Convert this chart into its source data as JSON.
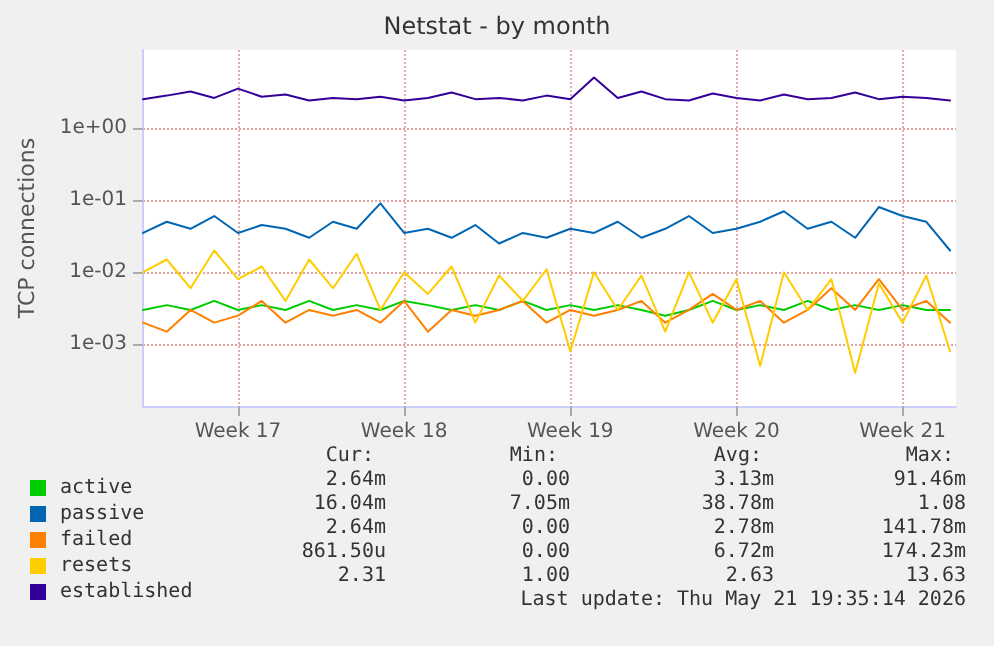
{
  "chart_data": {
    "type": "line",
    "title": "Netstat - by month",
    "ylabel": "TCP connections",
    "x": [
      "2026-04-19T12:00",
      "2026-04-20T12:00",
      "2026-04-21T12:00",
      "2026-04-22T12:00",
      "2026-04-23T12:00",
      "2026-04-24T12:00",
      "2026-04-25T12:00",
      "2026-04-26T12:00",
      "2026-04-27T12:00",
      "2026-04-28T12:00",
      "2026-04-29T12:00",
      "2026-04-30T12:00",
      "2026-05-01T12:00",
      "2026-05-02T12:00",
      "2026-05-03T12:00",
      "2026-05-04T12:00",
      "2026-05-05T12:00",
      "2026-05-06T12:00",
      "2026-05-07T12:00",
      "2026-05-08T12:00",
      "2026-05-09T12:00",
      "2026-05-10T12:00",
      "2026-05-11T12:00",
      "2026-05-12T12:00",
      "2026-05-13T12:00",
      "2026-05-14T12:00",
      "2026-05-15T12:00",
      "2026-05-16T12:00",
      "2026-05-17T12:00",
      "2026-05-18T12:00",
      "2026-05-19T12:00",
      "2026-05-20T12:00",
      "2026-05-21T12:00",
      "2026-05-22T12:00",
      "2026-05-23T12:00"
    ],
    "series": [
      {
        "name": "active",
        "color": "#00cc00",
        "values": [
          0.003,
          0.0035,
          0.003,
          0.004,
          0.003,
          0.0035,
          0.003,
          0.004,
          0.003,
          0.0035,
          0.003,
          0.004,
          0.0035,
          0.003,
          0.0035,
          0.003,
          0.004,
          0.003,
          0.0035,
          0.003,
          0.0035,
          0.003,
          0.0025,
          0.003,
          0.004,
          0.003,
          0.0035,
          0.003,
          0.004,
          0.003,
          0.0035,
          0.003,
          0.0035,
          0.003,
          0.003
        ]
      },
      {
        "name": "passive",
        "color": "#0066b3",
        "values": [
          0.035,
          0.05,
          0.04,
          0.06,
          0.035,
          0.045,
          0.04,
          0.03,
          0.05,
          0.04,
          0.09,
          0.035,
          0.04,
          0.03,
          0.045,
          0.025,
          0.035,
          0.03,
          0.04,
          0.035,
          0.05,
          0.03,
          0.04,
          0.06,
          0.035,
          0.04,
          0.05,
          0.07,
          0.04,
          0.05,
          0.03,
          0.08,
          0.06,
          0.05,
          0.02
        ]
      },
      {
        "name": "failed",
        "color": "#ff8000",
        "values": [
          0.002,
          0.0015,
          0.003,
          0.002,
          0.0025,
          0.004,
          0.002,
          0.003,
          0.0025,
          0.003,
          0.002,
          0.004,
          0.0015,
          0.003,
          0.0025,
          0.003,
          0.004,
          0.002,
          0.003,
          0.0025,
          0.003,
          0.004,
          0.002,
          0.003,
          0.005,
          0.003,
          0.004,
          0.002,
          0.003,
          0.006,
          0.003,
          0.008,
          0.003,
          0.004,
          0.002
        ]
      },
      {
        "name": "resets",
        "color": "#ffcc00",
        "values": [
          0.01,
          0.015,
          0.006,
          0.02,
          0.008,
          0.012,
          0.004,
          0.015,
          0.006,
          0.018,
          0.003,
          0.01,
          0.005,
          0.012,
          0.002,
          0.009,
          0.004,
          0.011,
          0.0008,
          0.01,
          0.003,
          0.009,
          0.0015,
          0.01,
          0.002,
          0.008,
          0.0005,
          0.01,
          0.003,
          0.008,
          0.0004,
          0.007,
          0.002,
          0.009,
          0.0008
        ]
      },
      {
        "name": "established",
        "color": "#330099",
        "values": [
          2.5,
          2.8,
          3.2,
          2.6,
          3.5,
          2.7,
          2.9,
          2.4,
          2.6,
          2.5,
          2.7,
          2.4,
          2.6,
          3.1,
          2.5,
          2.6,
          2.4,
          2.8,
          2.5,
          5.0,
          2.6,
          3.2,
          2.5,
          2.4,
          3.0,
          2.6,
          2.4,
          2.9,
          2.5,
          2.6,
          3.1,
          2.5,
          2.7,
          2.6,
          2.4
        ]
      }
    ],
    "xlim": [
      "2026-04-19T12:00",
      "2026-05-23T18:00"
    ],
    "xticks": [
      {
        "value": "2026-04-23T12:00",
        "label": "Week 17"
      },
      {
        "value": "2026-04-30T12:00",
        "label": "Week 18"
      },
      {
        "value": "2026-05-07T12:00",
        "label": "Week 19"
      },
      {
        "value": "2026-05-14T12:00",
        "label": "Week 20"
      },
      {
        "value": "2026-05-21T12:00",
        "label": "Week 21"
      }
    ],
    "ylim": [
      0.00014,
      12
    ],
    "yticks": [
      {
        "value": 0.001,
        "label": "1e-03"
      },
      {
        "value": 0.01,
        "label": "1e-02"
      },
      {
        "value": 0.1,
        "label": "1e-01"
      },
      {
        "value": 1,
        "label": "1e+00"
      }
    ],
    "log": "y",
    "grid": true,
    "legend": "bottom left",
    "marker": "none",
    "line_style": "solid",
    "annotations": [
      "Cur:",
      "Min:",
      "Avg:",
      "Max:",
      "2.64m",
      "0.00",
      "3.13m",
      "91.46m",
      "16.04m",
      "7.05m",
      "38.78m",
      "1.08",
      "2.64m",
      "0.00",
      "2.78m",
      "141.78m",
      "861.50u",
      "0.00",
      "6.72m",
      "174.23m",
      "2.31",
      "1.00",
      "2.63",
      "13.63",
      "Last update: Thu May 21 19:35:14 2026"
    ]
  }
}
